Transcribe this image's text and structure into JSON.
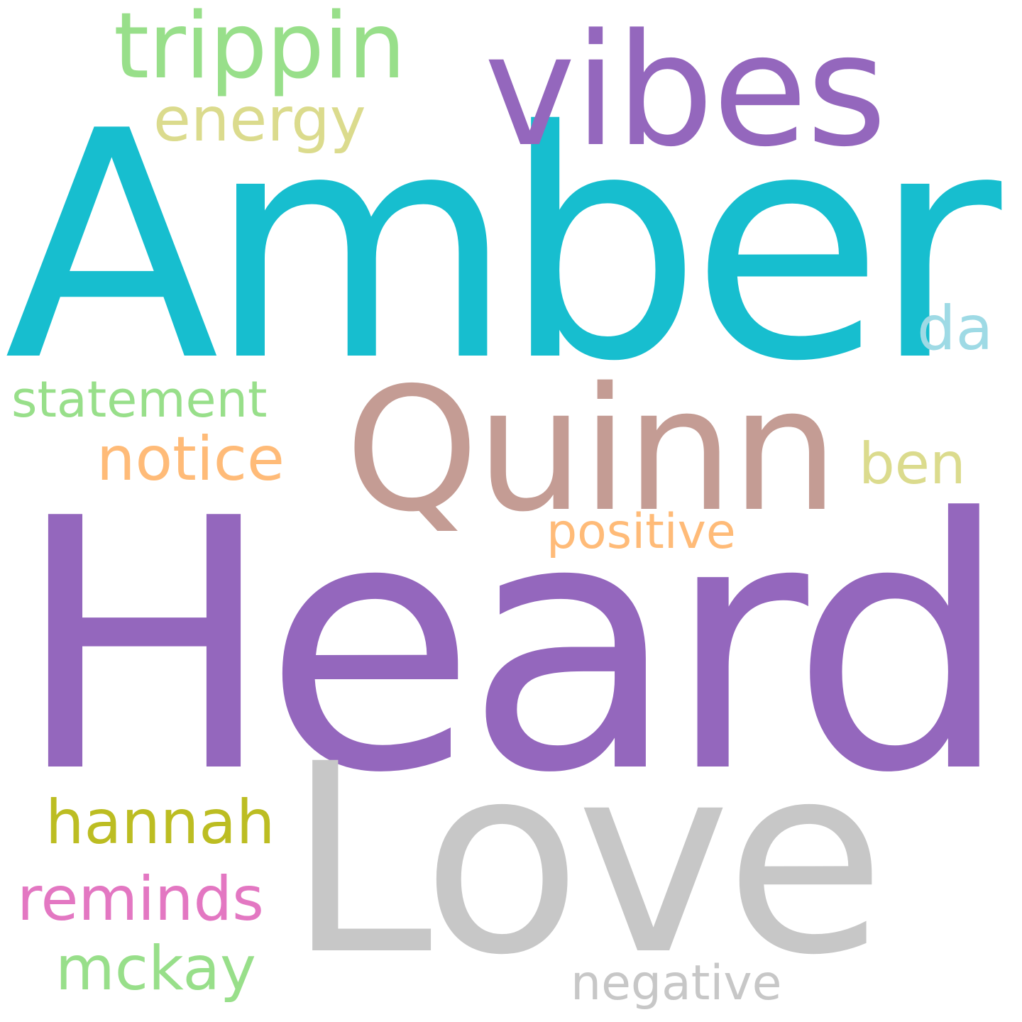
{
  "words": [
    {
      "key": "heard",
      "text": "Heard",
      "color": "#9467bd"
    },
    {
      "key": "amber",
      "text": "Amber",
      "color": "#17becf"
    },
    {
      "key": "love",
      "text": "Love",
      "color": "#c7c7c7"
    },
    {
      "key": "quinn",
      "text": "Quinn",
      "color": "#c49c94"
    },
    {
      "key": "vibes",
      "text": "vibes",
      "color": "#9467bd"
    },
    {
      "key": "trippin",
      "text": "trippin",
      "color": "#98df8a"
    },
    {
      "key": "energy",
      "text": "energy",
      "color": "#dbdb8d"
    },
    {
      "key": "notice",
      "text": "notice",
      "color": "#ffbb78"
    },
    {
      "key": "hannah",
      "text": "hannah",
      "color": "#bcbd22"
    },
    {
      "key": "reminds",
      "text": "reminds",
      "color": "#e377c2"
    },
    {
      "key": "mckay",
      "text": "mckay",
      "color": "#98df8a"
    },
    {
      "key": "statement",
      "text": "statement",
      "color": "#98df8a"
    },
    {
      "key": "ben",
      "text": "ben",
      "color": "#dbdb8d"
    },
    {
      "key": "positive",
      "text": "positive",
      "color": "#ffbb78"
    },
    {
      "key": "da",
      "text": "da",
      "color": "#9edae5"
    },
    {
      "key": "negative",
      "text": "negative",
      "color": "#c7c7c7"
    }
  ]
}
